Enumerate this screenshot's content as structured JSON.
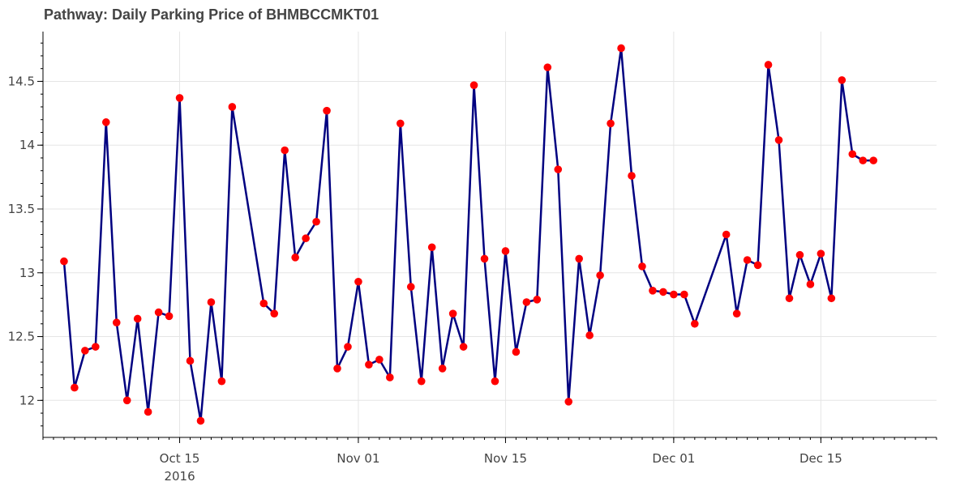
{
  "chart_data": {
    "type": "line",
    "title": "Pathway: Daily Parking Price of BHMBCCMKT01",
    "xlabel": "",
    "ylabel": "",
    "x_axis_type": "datetime",
    "xlim": [
      "2016-10-02",
      "2016-12-26"
    ],
    "ylim": [
      11.71,
      14.89
    ],
    "y_ticks": [
      12,
      12.5,
      13,
      13.5,
      14,
      14.5
    ],
    "y_tick_labels": [
      "12",
      "12.5",
      "13",
      "13.5",
      "14",
      "14.5"
    ],
    "x_ticks": [
      "2016-10-15",
      "2016-11-01",
      "2016-11-15",
      "2016-12-01",
      "2016-12-15"
    ],
    "x_tick_labels": [
      "Oct 15",
      "Nov 01",
      "Nov 15",
      "Dec 01",
      "Dec 15"
    ],
    "x_tick_sublabel": "2016",
    "grid": true,
    "legend": false,
    "colors": {
      "line": "#000080",
      "marker": "#ff0000"
    },
    "series": [
      {
        "x": [
          "2016-10-04",
          "2016-10-05",
          "2016-10-06",
          "2016-10-07",
          "2016-10-08",
          "2016-10-09",
          "2016-10-10",
          "2016-10-11",
          "2016-10-12",
          "2016-10-13",
          "2016-10-14",
          "2016-10-15",
          "2016-10-16",
          "2016-10-17",
          "2016-10-18",
          "2016-10-19",
          "2016-10-20",
          "2016-10-23",
          "2016-10-24",
          "2016-10-25",
          "2016-10-26",
          "2016-10-27",
          "2016-10-28",
          "2016-10-29",
          "2016-10-30",
          "2016-10-31",
          "2016-11-01",
          "2016-11-02",
          "2016-11-03",
          "2016-11-04",
          "2016-11-05",
          "2016-11-06",
          "2016-11-07",
          "2016-11-08",
          "2016-11-09",
          "2016-11-10",
          "2016-11-11",
          "2016-11-12",
          "2016-11-13",
          "2016-11-14",
          "2016-11-15",
          "2016-11-16",
          "2016-11-17",
          "2016-11-18",
          "2016-11-19",
          "2016-11-20",
          "2016-11-21",
          "2016-11-22",
          "2016-11-23",
          "2016-11-24",
          "2016-11-25",
          "2016-11-26",
          "2016-11-27",
          "2016-11-28",
          "2016-11-29",
          "2016-11-30",
          "2016-12-01",
          "2016-12-02",
          "2016-12-03",
          "2016-12-06",
          "2016-12-07",
          "2016-12-08",
          "2016-12-09",
          "2016-12-10",
          "2016-12-11",
          "2016-12-12",
          "2016-12-13",
          "2016-12-14",
          "2016-12-15",
          "2016-12-16",
          "2016-12-17",
          "2016-12-18",
          "2016-12-19",
          "2016-12-20"
        ],
        "values": [
          13.09,
          12.1,
          12.39,
          12.42,
          14.18,
          12.61,
          12.0,
          12.64,
          11.91,
          12.69,
          12.66,
          14.37,
          12.31,
          11.84,
          12.77,
          12.15,
          14.3,
          12.76,
          12.68,
          13.96,
          13.12,
          13.27,
          13.4,
          14.27,
          12.25,
          12.42,
          12.93,
          12.28,
          12.32,
          12.18,
          14.17,
          12.89,
          12.15,
          13.2,
          12.25,
          12.68,
          12.42,
          14.47,
          13.11,
          12.15,
          13.17,
          12.38,
          12.77,
          12.79,
          14.61,
          13.81,
          11.99,
          13.11,
          12.51,
          12.98,
          14.17,
          14.76,
          13.76,
          13.05,
          12.86,
          12.85,
          12.83,
          12.83,
          12.6,
          13.3,
          12.68,
          13.1,
          13.06,
          14.63,
          14.04,
          12.8,
          13.14,
          12.91,
          13.15,
          12.8,
          14.51,
          13.93,
          13.88,
          13.88
        ]
      }
    ]
  }
}
